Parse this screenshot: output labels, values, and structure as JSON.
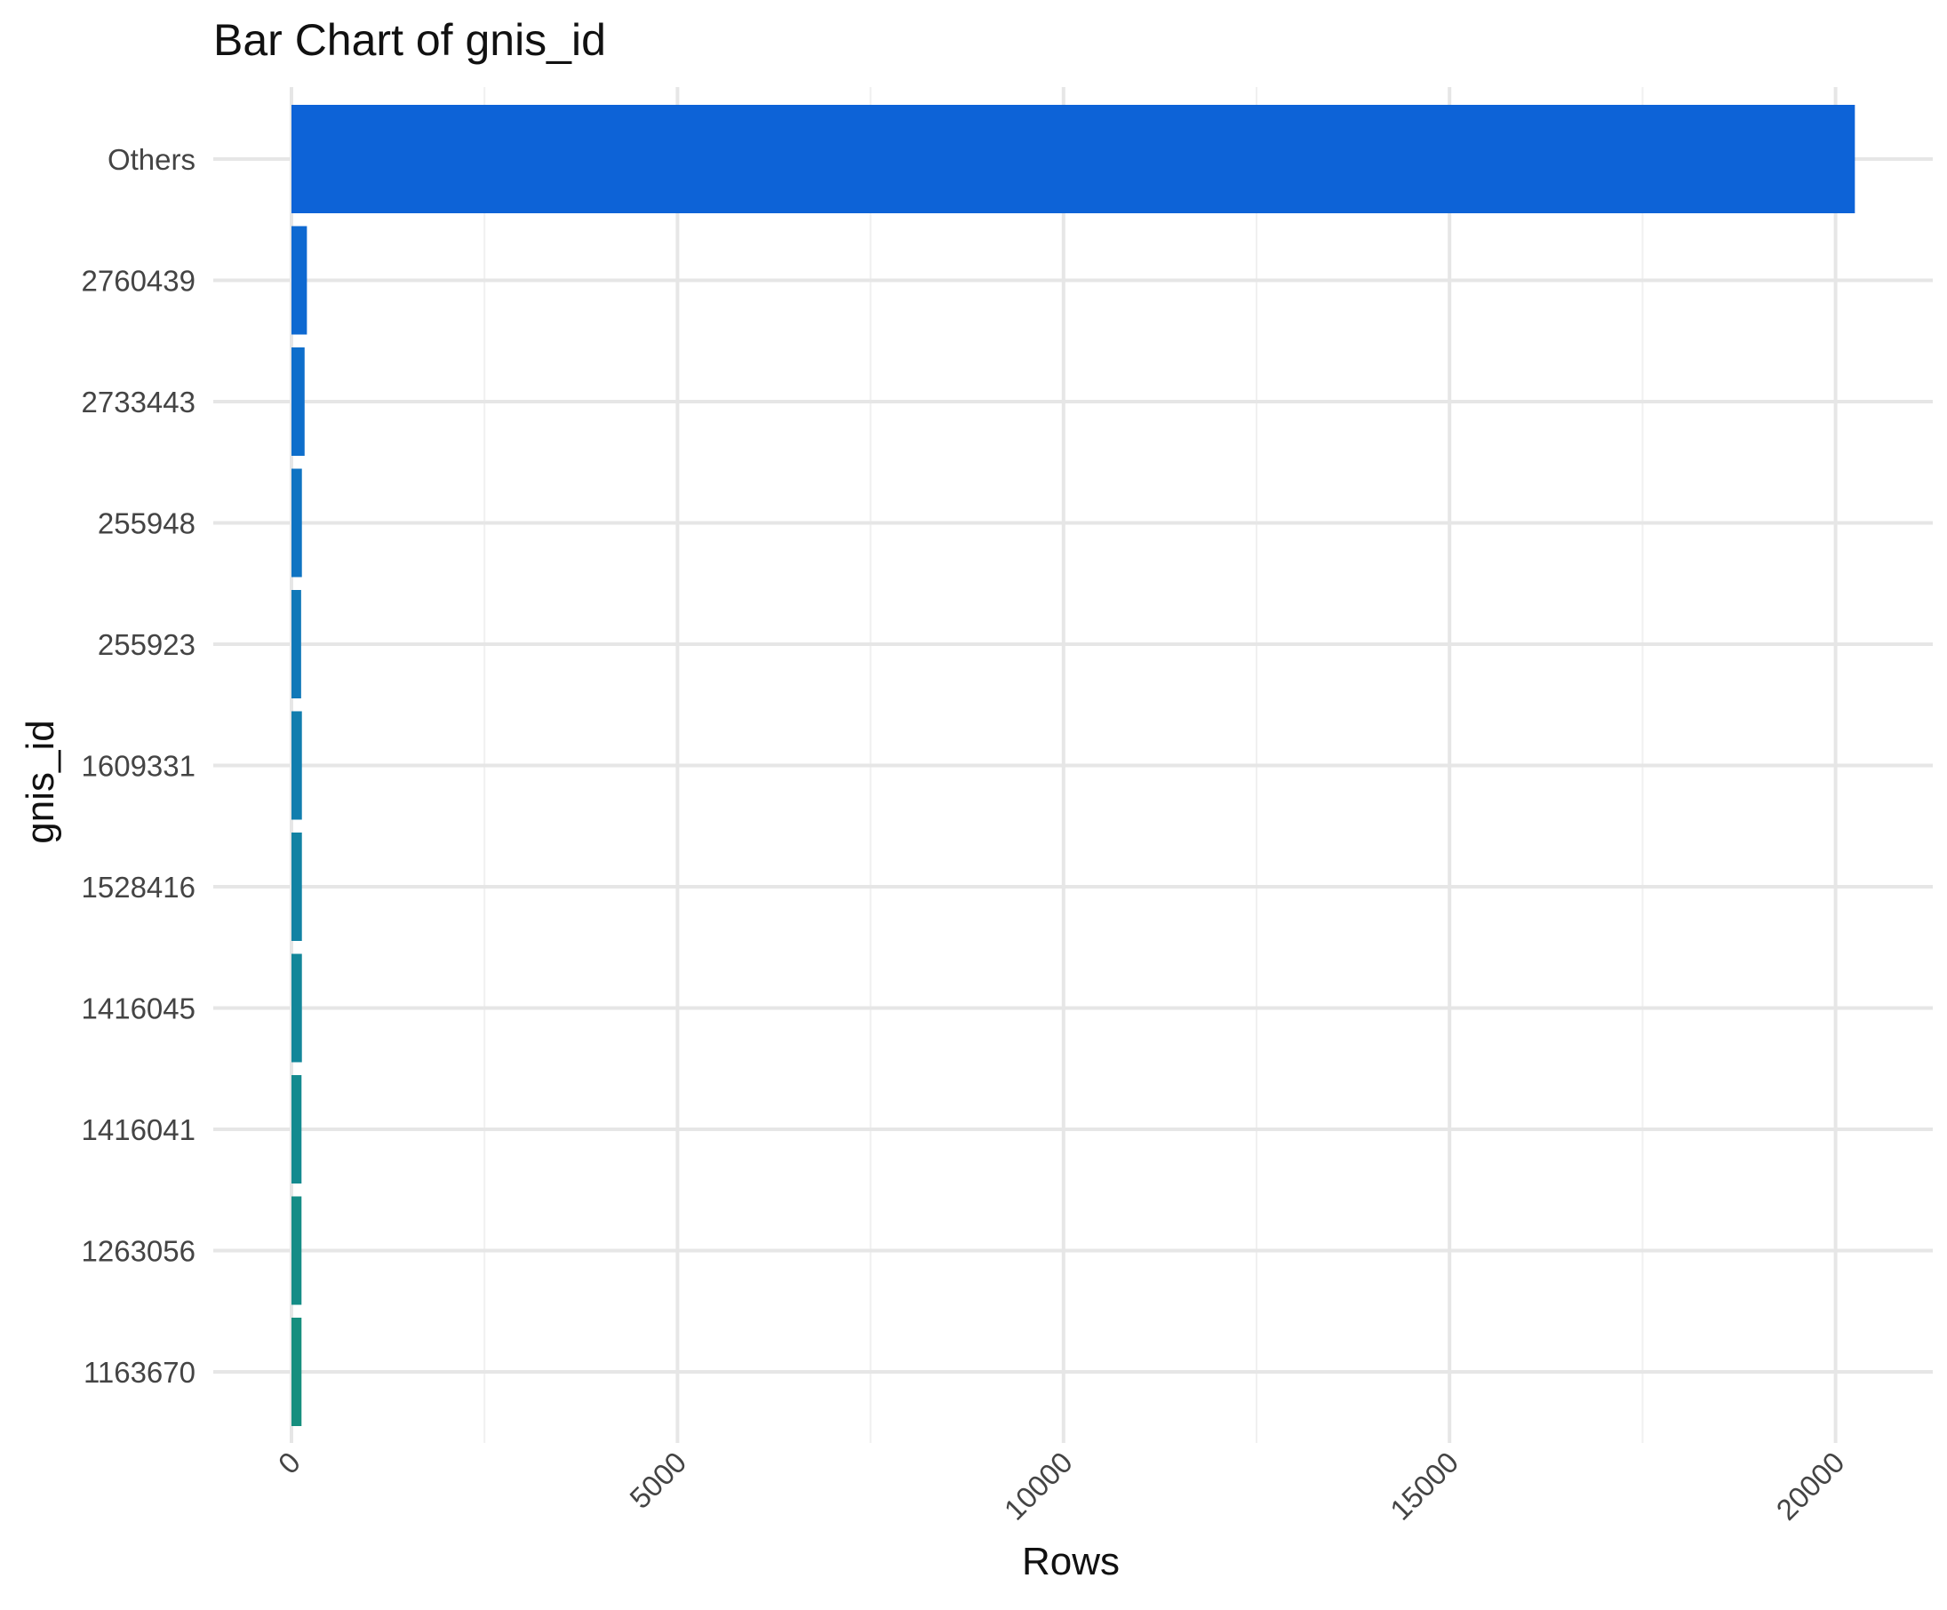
{
  "chart_data": {
    "type": "bar",
    "orientation": "horizontal",
    "title": "Bar Chart of gnis_id",
    "xlabel": "Rows",
    "ylabel": "gnis_id",
    "categories": [
      "Others",
      "2760439",
      "2733443",
      "255948",
      "255923",
      "1609331",
      "1528416",
      "1416045",
      "1416041",
      "1263056",
      "1163670"
    ],
    "values": [
      20250,
      200,
      170,
      135,
      125,
      135,
      135,
      135,
      130,
      130,
      130
    ],
    "bar_colors": [
      "#0d63d7",
      "#0e69d1",
      "#0e6ecb",
      "#0f73c2",
      "#1078b8",
      "#117dae",
      "#1282a3",
      "#138699",
      "#148a8f",
      "#158c86",
      "#168e7e"
    ],
    "xlim": [
      0,
      21000
    ],
    "x_ticks": [
      0,
      5000,
      10000,
      15000,
      20000
    ],
    "x_tick_labels": [
      "0",
      "5000",
      "10000",
      "15000",
      "20000"
    ],
    "grid": true,
    "legend": false
  }
}
